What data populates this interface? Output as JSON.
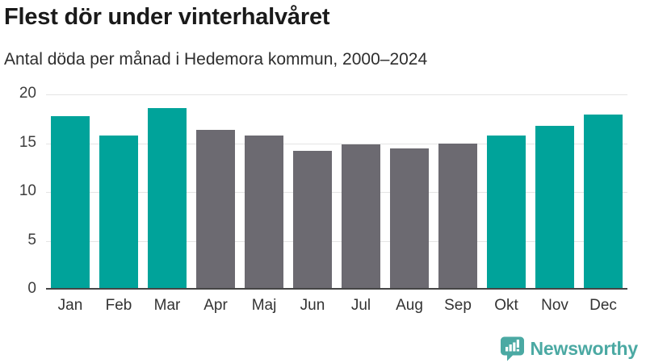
{
  "header": {
    "title": "Flest dör under vinterhalvåret",
    "subtitle": "Antal döda per månad i Hedemora kommun, 2000–2024"
  },
  "chart_data": {
    "type": "bar",
    "title": "Flest dör under vinterhalvåret",
    "subtitle": "Antal döda per månad i Hedemora kommun, 2000–2024",
    "categories": [
      "Jan",
      "Feb",
      "Mar",
      "Apr",
      "Maj",
      "Jun",
      "Jul",
      "Aug",
      "Sep",
      "Okt",
      "Nov",
      "Dec"
    ],
    "values": [
      17.8,
      15.8,
      18.6,
      16.4,
      15.8,
      14.2,
      14.9,
      14.5,
      15.0,
      15.8,
      16.8,
      17.9
    ],
    "highlighted_categories": [
      "Jan",
      "Feb",
      "Mar",
      "Okt",
      "Nov",
      "Dec"
    ],
    "xlabel": "",
    "ylabel": "",
    "ylim": [
      0,
      20
    ],
    "yticks": [
      0,
      5,
      10,
      15,
      20
    ],
    "grid": true,
    "legend": false,
    "colors": {
      "highlight_bar": "#00a39a",
      "base_bar": "#6c6a71",
      "gridline": "#e4e4e4",
      "axis_line": "#454545",
      "tick_text": "#3d3d3d"
    }
  },
  "footer": {
    "brand": "Newsworthy",
    "brand_color": "#4ba9a3",
    "logo_icon": "bar-chart-speech-bubble-icon"
  }
}
